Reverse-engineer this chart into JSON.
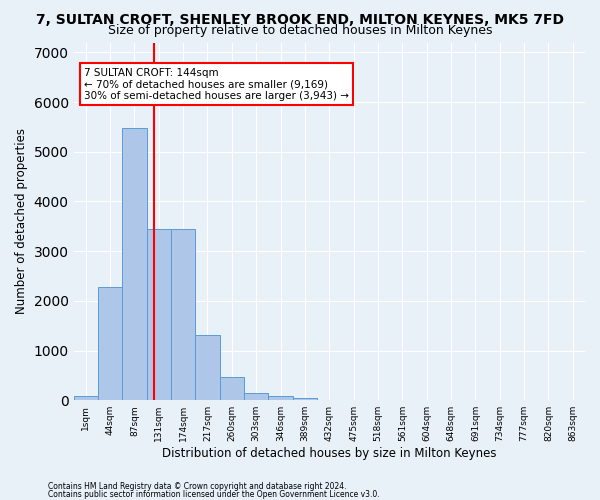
{
  "title": "7, SULTAN CROFT, SHENLEY BROOK END, MILTON KEYNES, MK5 7FD",
  "subtitle": "Size of property relative to detached houses in Milton Keynes",
  "xlabel": "Distribution of detached houses by size in Milton Keynes",
  "ylabel": "Number of detached properties",
  "footnote1": "Contains HM Land Registry data © Crown copyright and database right 2024.",
  "footnote2": "Contains public sector information licensed under the Open Government Licence v3.0.",
  "categories": [
    "1sqm",
    "44sqm",
    "87sqm",
    "131sqm",
    "174sqm",
    "217sqm",
    "260sqm",
    "303sqm",
    "346sqm",
    "389sqm",
    "432sqm",
    "475sqm",
    "518sqm",
    "561sqm",
    "604sqm",
    "648sqm",
    "691sqm",
    "734sqm",
    "777sqm",
    "820sqm",
    "863sqm"
  ],
  "bar_values": [
    80,
    2280,
    5480,
    3440,
    3440,
    1310,
    470,
    155,
    90,
    50,
    0,
    0,
    0,
    0,
    0,
    0,
    0,
    0,
    0,
    0,
    0
  ],
  "bar_color": "#aec6e8",
  "bar_edgecolor": "#5b9bd5",
  "annotation_label": "7 SULTAN CROFT: 144sqm\n← 70% of detached houses are smaller (9,169)\n30% of semi-detached houses are larger (3,943) →",
  "annotation_box_color": "#ffffff",
  "annotation_box_edgecolor": "#ff0000",
  "vline_color": "#ff0000",
  "ylim": [
    0,
    7200
  ],
  "yticks": [
    0,
    1000,
    2000,
    3000,
    4000,
    5000,
    6000,
    7000
  ],
  "background_color": "#e8f0f8",
  "grid_color": "#ffffff",
  "title_fontsize": 10,
  "subtitle_fontsize": 9,
  "xlabel_fontsize": 8.5,
  "ylabel_fontsize": 8.5
}
